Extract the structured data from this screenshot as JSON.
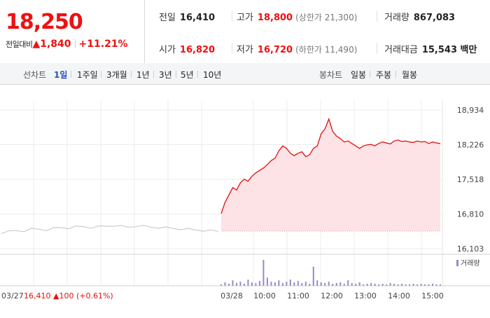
{
  "price": {
    "current": "18,250",
    "change_label": "전일대비",
    "change_value": "▲1,840",
    "change_pct": "+11.21%"
  },
  "stats": {
    "prev_close": {
      "label": "전일",
      "value": "16,410"
    },
    "high": {
      "label": "고가",
      "value": "18,800",
      "extra": "(상한가 21,300)"
    },
    "volume": {
      "label": "거래량",
      "value": "867,083"
    },
    "open": {
      "label": "시가",
      "value": "16,820"
    },
    "low": {
      "label": "저가",
      "value": "16,720",
      "extra": "(하한가 11,490)"
    },
    "trade_amount": {
      "label": "거래대금",
      "value": "15,543 백만"
    }
  },
  "tabs": {
    "line_label": "선차트",
    "line_periods": [
      "1일",
      "1주일",
      "3개월",
      "1년",
      "3년",
      "5년",
      "10년"
    ],
    "active_period": "1일",
    "candle_label": "봉차트",
    "candle_periods": [
      "일봉",
      "주봉",
      "월봉"
    ]
  },
  "colors": {
    "up": "#e11111",
    "area_fill": "#fde3e6",
    "prev_line": "#cccccc",
    "volume_bar": "#9b87c9",
    "active_tab": "#2a4fbf"
  },
  "chart_data": {
    "type": "line",
    "y_ticks": [
      "18,934",
      "18,226",
      "17,518",
      "16,810",
      "16,103"
    ],
    "ylim": [
      16103,
      18934
    ],
    "x_labels": [
      "03/28",
      "10:00",
      "11:00",
      "12:00",
      "13:00",
      "14:00",
      "15:00"
    ],
    "prev_day_label": "03/27",
    "prev_day_summary": {
      "price": "16,410",
      "change": "▲100",
      "pct": "(+0.61%)"
    },
    "volume_legend": "거래량",
    "series": [
      {
        "values": [
          16430,
          16450,
          16480,
          16470,
          16500,
          16510,
          16490,
          16520,
          16540,
          16530,
          16550,
          16560,
          16540,
          16550,
          16570,
          16580,
          16560,
          16550,
          16570,
          16560,
          16550,
          16540,
          16530,
          16520,
          16510,
          16500,
          16490,
          16480,
          16470,
          16460
        ]
      },
      {
        "values": [
          16820,
          17050,
          17200,
          17350,
          17300,
          17450,
          17520,
          17480,
          17580,
          17650,
          17700,
          17750,
          17820,
          17900,
          17950,
          18100,
          18200,
          18150,
          18050,
          18000,
          18050,
          18080,
          17980,
          18020,
          18150,
          18200,
          18450,
          18550,
          18750,
          18500,
          18400,
          18350,
          18280,
          18300,
          18250,
          18200,
          18150,
          18200,
          18220,
          18230,
          18200,
          18250,
          18280,
          18260,
          18240,
          18300,
          18320,
          18290,
          18300,
          18280,
          18270,
          18300,
          18280,
          18290,
          18250,
          18280,
          18260,
          18250
        ]
      }
    ],
    "volume": [
      2,
      5,
      3,
      8,
      4,
      6,
      3,
      9,
      5,
      4,
      7,
      38,
      12,
      6,
      5,
      8,
      4,
      6,
      9,
      5,
      7,
      4,
      6,
      3,
      28,
      8,
      5,
      4,
      6,
      3,
      4,
      5,
      3,
      8,
      4,
      3,
      5,
      2,
      3,
      4,
      3,
      2,
      3,
      2,
      4,
      3,
      2,
      3,
      2,
      2,
      3,
      2,
      3,
      2,
      2,
      3,
      2,
      2
    ]
  }
}
